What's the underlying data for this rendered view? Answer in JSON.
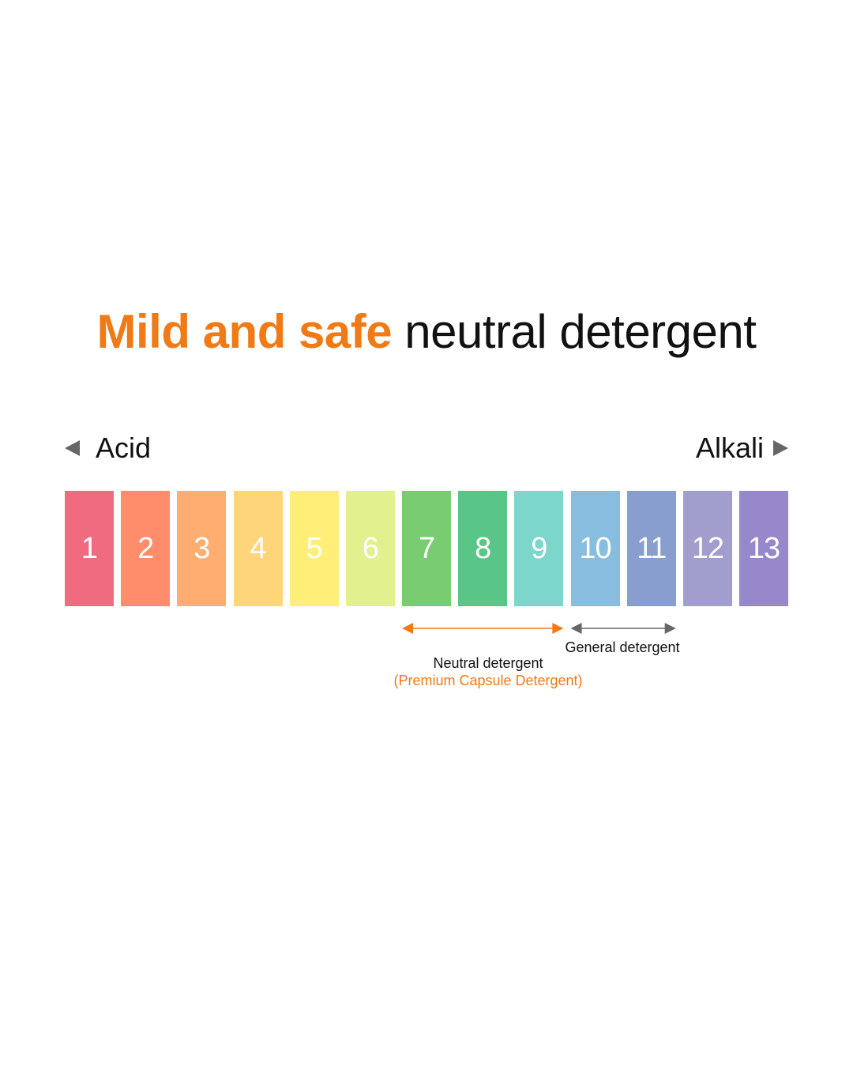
{
  "title": {
    "highlight": "Mild and safe",
    "rest": "neutral detergent"
  },
  "scale": {
    "acid_label": "Acid",
    "alkali_label": "Alkali",
    "cells": [
      {
        "label": "1",
        "color": "#F06B80"
      },
      {
        "label": "2",
        "color": "#FF8C6A"
      },
      {
        "label": "3",
        "color": "#FFAD70"
      },
      {
        "label": "4",
        "color": "#FFD57A"
      },
      {
        "label": "5",
        "color": "#FFEE77"
      },
      {
        "label": "6",
        "color": "#E2F08E"
      },
      {
        "label": "7",
        "color": "#7ACC72"
      },
      {
        "label": "8",
        "color": "#59C586"
      },
      {
        "label": "9",
        "color": "#7CD6CB"
      },
      {
        "label": "10",
        "color": "#88BDDF"
      },
      {
        "label": "11",
        "color": "#879ECF"
      },
      {
        "label": "12",
        "color": "#A19DCC"
      },
      {
        "label": "13",
        "color": "#9787CB"
      }
    ]
  },
  "ranges": {
    "neutral": {
      "from": 7,
      "to": 9,
      "label": "Neutral detergent",
      "sublabel": "(Premium Capsule Detergent)",
      "color": "#F07A16"
    },
    "general": {
      "from": 10,
      "to": 11,
      "label": "General detergent",
      "color": "#666666"
    }
  },
  "colors": {
    "accent": "#F07A16",
    "text": "#111111",
    "arrow": "#666666"
  }
}
